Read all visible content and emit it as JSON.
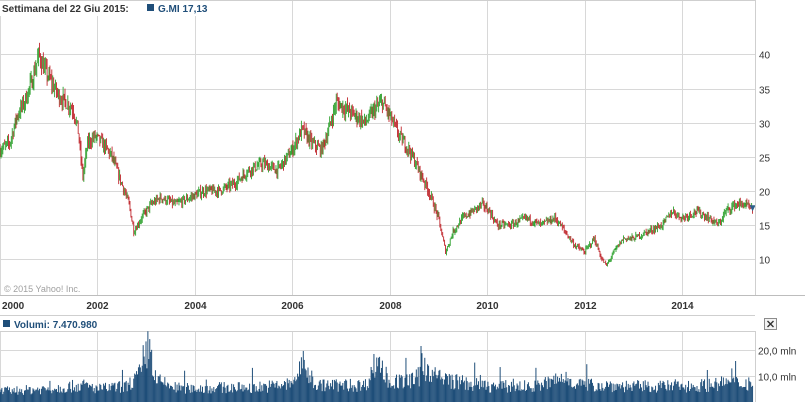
{
  "header": {
    "period_label": "Settimana del 22 Giu 2015:",
    "ticker_legend": "G.MI 17,13",
    "ticker_color": "#1f4e79"
  },
  "volume_header": {
    "legend": "Volumi: 7.470.980",
    "close_icon": "close-icon"
  },
  "copyright": "© 2015 Yahoo! Inc.",
  "colors": {
    "up": "#2ca02c",
    "down": "#c0272d",
    "volume": "#1f4e79",
    "grid": "#d8d8d8"
  },
  "chart_data": [
    {
      "type": "candlestick",
      "interval": "weekly",
      "x_axis": {
        "tick_labels": [
          "2000",
          "2002",
          "2004",
          "2006",
          "2008",
          "2010",
          "2012",
          "2014"
        ],
        "range": [
          2000.0,
          2015.5
        ]
      },
      "y_axis": {
        "tick_labels": [
          "10",
          "15",
          "20",
          "25",
          "30",
          "35",
          "40"
        ],
        "range": [
          4.7,
          45.5
        ],
        "side": "right"
      },
      "grid": true,
      "series": [
        {
          "name": "G.MI",
          "last": 17.13,
          "points": [
            {
              "x": 2000.0,
              "y": 26
            },
            {
              "x": 2000.2,
              "y": 27
            },
            {
              "x": 2000.35,
              "y": 31
            },
            {
              "x": 2000.5,
              "y": 33
            },
            {
              "x": 2000.65,
              "y": 36
            },
            {
              "x": 2000.8,
              "y": 40
            },
            {
              "x": 2000.9,
              "y": 38
            },
            {
              "x": 2001.05,
              "y": 36
            },
            {
              "x": 2001.2,
              "y": 34
            },
            {
              "x": 2001.35,
              "y": 33
            },
            {
              "x": 2001.5,
              "y": 32
            },
            {
              "x": 2001.6,
              "y": 29
            },
            {
              "x": 2001.7,
              "y": 22
            },
            {
              "x": 2001.8,
              "y": 27
            },
            {
              "x": 2001.95,
              "y": 28
            },
            {
              "x": 2002.1,
              "y": 27
            },
            {
              "x": 2002.3,
              "y": 25
            },
            {
              "x": 2002.5,
              "y": 21
            },
            {
              "x": 2002.65,
              "y": 18
            },
            {
              "x": 2002.75,
              "y": 14
            },
            {
              "x": 2002.9,
              "y": 16
            },
            {
              "x": 2003.1,
              "y": 18
            },
            {
              "x": 2003.3,
              "y": 19
            },
            {
              "x": 2003.6,
              "y": 18
            },
            {
              "x": 2003.9,
              "y": 19
            },
            {
              "x": 2004.2,
              "y": 20
            },
            {
              "x": 2004.5,
              "y": 20
            },
            {
              "x": 2004.8,
              "y": 21
            },
            {
              "x": 2005.1,
              "y": 23
            },
            {
              "x": 2005.4,
              "y": 24
            },
            {
              "x": 2005.7,
              "y": 23
            },
            {
              "x": 2006.0,
              "y": 26
            },
            {
              "x": 2006.2,
              "y": 29
            },
            {
              "x": 2006.4,
              "y": 27
            },
            {
              "x": 2006.6,
              "y": 26
            },
            {
              "x": 2006.75,
              "y": 29
            },
            {
              "x": 2006.9,
              "y": 33
            },
            {
              "x": 2007.1,
              "y": 32
            },
            {
              "x": 2007.3,
              "y": 31
            },
            {
              "x": 2007.5,
              "y": 30
            },
            {
              "x": 2007.7,
              "y": 32
            },
            {
              "x": 2007.85,
              "y": 33
            },
            {
              "x": 2008.0,
              "y": 31
            },
            {
              "x": 2008.2,
              "y": 28
            },
            {
              "x": 2008.4,
              "y": 26
            },
            {
              "x": 2008.6,
              "y": 23
            },
            {
              "x": 2008.8,
              "y": 20
            },
            {
              "x": 2009.0,
              "y": 16
            },
            {
              "x": 2009.15,
              "y": 11
            },
            {
              "x": 2009.3,
              "y": 14
            },
            {
              "x": 2009.5,
              "y": 16
            },
            {
              "x": 2009.7,
              "y": 17
            },
            {
              "x": 2009.9,
              "y": 18
            },
            {
              "x": 2010.05,
              "y": 17
            },
            {
              "x": 2010.2,
              "y": 15
            },
            {
              "x": 2010.5,
              "y": 15
            },
            {
              "x": 2010.8,
              "y": 16
            },
            {
              "x": 2011.1,
              "y": 15
            },
            {
              "x": 2011.4,
              "y": 16
            },
            {
              "x": 2011.6,
              "y": 14
            },
            {
              "x": 2011.8,
              "y": 12
            },
            {
              "x": 2012.0,
              "y": 11
            },
            {
              "x": 2012.2,
              "y": 13
            },
            {
              "x": 2012.35,
              "y": 10
            },
            {
              "x": 2012.45,
              "y": 9
            },
            {
              "x": 2012.6,
              "y": 11
            },
            {
              "x": 2012.8,
              "y": 13
            },
            {
              "x": 2013.0,
              "y": 13
            },
            {
              "x": 2013.3,
              "y": 14
            },
            {
              "x": 2013.6,
              "y": 15
            },
            {
              "x": 2013.8,
              "y": 17
            },
            {
              "x": 2014.0,
              "y": 16
            },
            {
              "x": 2014.3,
              "y": 17
            },
            {
              "x": 2014.55,
              "y": 16
            },
            {
              "x": 2014.75,
              "y": 15
            },
            {
              "x": 2014.9,
              "y": 17
            },
            {
              "x": 2015.1,
              "y": 18
            },
            {
              "x": 2015.3,
              "y": 18
            },
            {
              "x": 2015.45,
              "y": 17.13
            }
          ]
        }
      ]
    },
    {
      "type": "bar",
      "interval": "weekly",
      "series_label": "Volumi",
      "last": 7470980,
      "y_axis": {
        "tick_labels": [
          "10,0 mln",
          "20,0 mln"
        ],
        "range": [
          0,
          27
        ],
        "unit": "mln",
        "side": "right"
      },
      "grid": true,
      "series": [
        {
          "name": "Volumi",
          "points": [
            {
              "x": 2000.0,
              "y": 4.5
            },
            {
              "x": 2000.5,
              "y": 5
            },
            {
              "x": 2001.0,
              "y": 5.5
            },
            {
              "x": 2001.7,
              "y": 7
            },
            {
              "x": 2002.0,
              "y": 5.5
            },
            {
              "x": 2002.6,
              "y": 6.5
            },
            {
              "x": 2002.95,
              "y": 13
            },
            {
              "x": 2003.05,
              "y": 25
            },
            {
              "x": 2003.2,
              "y": 9
            },
            {
              "x": 2003.6,
              "y": 6
            },
            {
              "x": 2004.0,
              "y": 5.5
            },
            {
              "x": 2004.5,
              "y": 6
            },
            {
              "x": 2005.0,
              "y": 6
            },
            {
              "x": 2005.5,
              "y": 6.5
            },
            {
              "x": 2006.0,
              "y": 7.5
            },
            {
              "x": 2006.2,
              "y": 16
            },
            {
              "x": 2006.5,
              "y": 7
            },
            {
              "x": 2007.0,
              "y": 7
            },
            {
              "x": 2007.5,
              "y": 7
            },
            {
              "x": 2007.75,
              "y": 18
            },
            {
              "x": 2008.0,
              "y": 8
            },
            {
              "x": 2008.5,
              "y": 9
            },
            {
              "x": 2008.8,
              "y": 14
            },
            {
              "x": 2009.0,
              "y": 10
            },
            {
              "x": 2009.5,
              "y": 8
            },
            {
              "x": 2010.0,
              "y": 6.5
            },
            {
              "x": 2010.5,
              "y": 6.5
            },
            {
              "x": 2011.0,
              "y": 6.5
            },
            {
              "x": 2011.6,
              "y": 10
            },
            {
              "x": 2012.0,
              "y": 7
            },
            {
              "x": 2012.5,
              "y": 7
            },
            {
              "x": 2013.0,
              "y": 6.5
            },
            {
              "x": 2013.5,
              "y": 6.5
            },
            {
              "x": 2014.0,
              "y": 6.5
            },
            {
              "x": 2014.5,
              "y": 7
            },
            {
              "x": 2015.0,
              "y": 8
            },
            {
              "x": 2015.45,
              "y": 7.47
            }
          ]
        }
      ]
    }
  ]
}
